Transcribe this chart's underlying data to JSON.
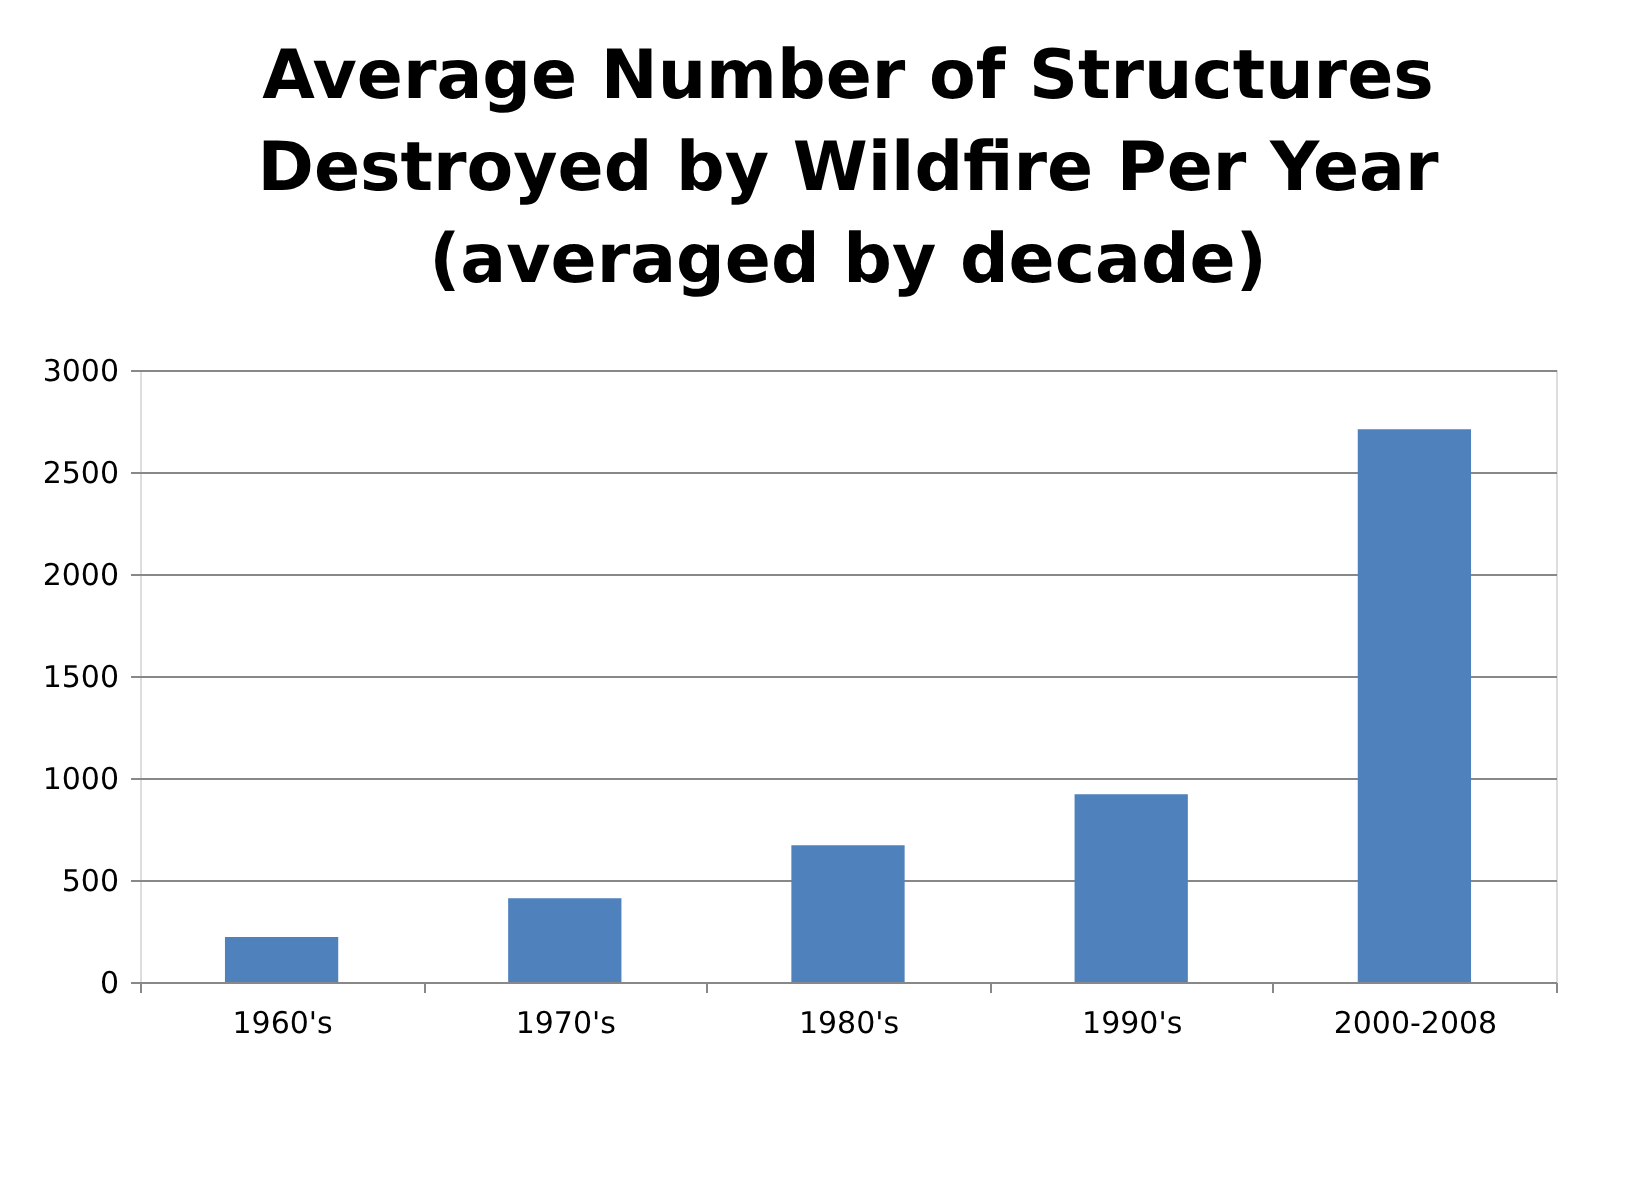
{
  "chart_data": {
    "type": "bar",
    "title": [
      "Average Number of Structures",
      "Destroyed by Wildfire Per Year",
      "(averaged by decade)"
    ],
    "categories": [
      "1960's",
      "1970's",
      "1980's",
      "1990's",
      "2000-2008"
    ],
    "values": [
      220,
      410,
      670,
      920,
      2710
    ],
    "color": "#4f81bd",
    "ylim": [
      0,
      3000
    ],
    "yticks": [
      0,
      500,
      1000,
      1500,
      2000,
      2500,
      3000
    ],
    "grid": "y"
  }
}
